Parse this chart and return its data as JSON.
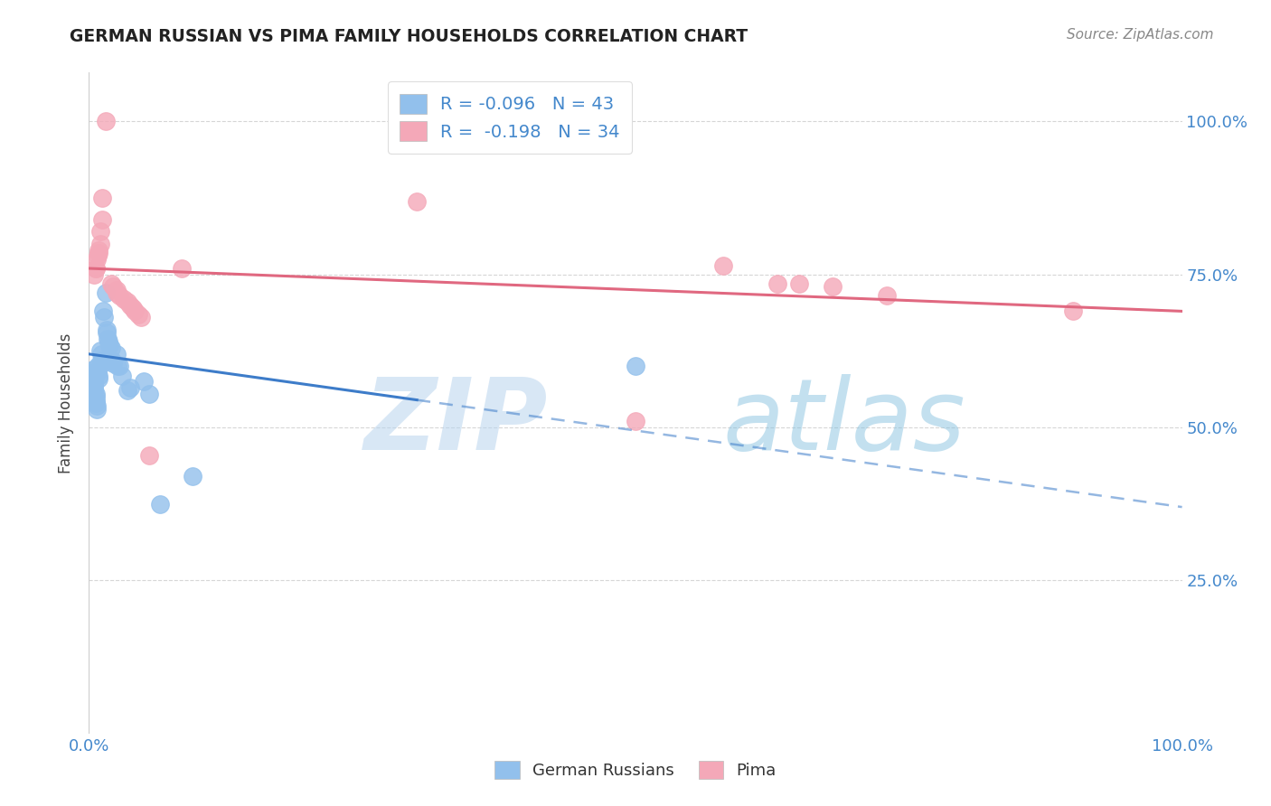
{
  "title": "GERMAN RUSSIAN VS PIMA FAMILY HOUSEHOLDS CORRELATION CHART",
  "source_text": "Source: ZipAtlas.com",
  "ylabel": "Family Households",
  "y_tick_labels": [
    "25.0%",
    "50.0%",
    "75.0%",
    "100.0%"
  ],
  "y_tick_values": [
    0.25,
    0.5,
    0.75,
    1.0
  ],
  "xlim": [
    0.0,
    1.0
  ],
  "ylim": [
    0.0,
    1.08
  ],
  "legend_blue_label": "R = -0.096   N = 43",
  "legend_pink_label": "R =  -0.198   N = 34",
  "blue_color": "#92C0EC",
  "pink_color": "#F4A8B8",
  "blue_line_color": "#3D7CC9",
  "pink_line_color": "#E06880",
  "blue_scatter": [
    [
      0.004,
      0.595
    ],
    [
      0.004,
      0.59
    ],
    [
      0.004,
      0.585
    ],
    [
      0.005,
      0.575
    ],
    [
      0.005,
      0.57
    ],
    [
      0.005,
      0.565
    ],
    [
      0.005,
      0.56
    ],
    [
      0.006,
      0.555
    ],
    [
      0.006,
      0.55
    ],
    [
      0.006,
      0.545
    ],
    [
      0.006,
      0.54
    ],
    [
      0.007,
      0.535
    ],
    [
      0.007,
      0.53
    ],
    [
      0.008,
      0.6
    ],
    [
      0.008,
      0.59
    ],
    [
      0.009,
      0.585
    ],
    [
      0.009,
      0.58
    ],
    [
      0.01,
      0.625
    ],
    [
      0.011,
      0.62
    ],
    [
      0.011,
      0.61
    ],
    [
      0.012,
      0.605
    ],
    [
      0.013,
      0.69
    ],
    [
      0.014,
      0.68
    ],
    [
      0.015,
      0.72
    ],
    [
      0.016,
      0.66
    ],
    [
      0.016,
      0.655
    ],
    [
      0.017,
      0.645
    ],
    [
      0.018,
      0.64
    ],
    [
      0.019,
      0.635
    ],
    [
      0.02,
      0.63
    ],
    [
      0.021,
      0.61
    ],
    [
      0.022,
      0.605
    ],
    [
      0.025,
      0.62
    ],
    [
      0.026,
      0.6
    ],
    [
      0.028,
      0.6
    ],
    [
      0.03,
      0.585
    ],
    [
      0.035,
      0.56
    ],
    [
      0.038,
      0.565
    ],
    [
      0.05,
      0.575
    ],
    [
      0.055,
      0.555
    ],
    [
      0.095,
      0.42
    ],
    [
      0.065,
      0.375
    ],
    [
      0.5,
      0.6
    ]
  ],
  "pink_scatter": [
    [
      0.015,
      1.0
    ],
    [
      0.012,
      0.875
    ],
    [
      0.012,
      0.84
    ],
    [
      0.01,
      0.82
    ],
    [
      0.01,
      0.8
    ],
    [
      0.009,
      0.79
    ],
    [
      0.009,
      0.785
    ],
    [
      0.008,
      0.78
    ],
    [
      0.007,
      0.775
    ],
    [
      0.006,
      0.76
    ],
    [
      0.006,
      0.76
    ],
    [
      0.005,
      0.75
    ],
    [
      0.02,
      0.735
    ],
    [
      0.022,
      0.73
    ],
    [
      0.025,
      0.725
    ],
    [
      0.025,
      0.72
    ],
    [
      0.028,
      0.715
    ],
    [
      0.032,
      0.71
    ],
    [
      0.035,
      0.705
    ],
    [
      0.038,
      0.7
    ],
    [
      0.04,
      0.695
    ],
    [
      0.042,
      0.69
    ],
    [
      0.045,
      0.685
    ],
    [
      0.048,
      0.68
    ],
    [
      0.055,
      0.455
    ],
    [
      0.085,
      0.76
    ],
    [
      0.3,
      0.87
    ],
    [
      0.5,
      0.51
    ],
    [
      0.58,
      0.765
    ],
    [
      0.63,
      0.735
    ],
    [
      0.65,
      0.735
    ],
    [
      0.68,
      0.73
    ],
    [
      0.73,
      0.715
    ],
    [
      0.9,
      0.69
    ]
  ],
  "blue_trend_solid": {
    "x_start": 0.0,
    "y_start": 0.62,
    "x_end": 0.3,
    "y_end": 0.545
  },
  "blue_trend_dashed": {
    "x_start": 0.3,
    "y_start": 0.545,
    "x_end": 1.0,
    "y_end": 0.37
  },
  "pink_trend": {
    "x_start": 0.0,
    "y_start": 0.76,
    "x_end": 1.0,
    "y_end": 0.69
  }
}
